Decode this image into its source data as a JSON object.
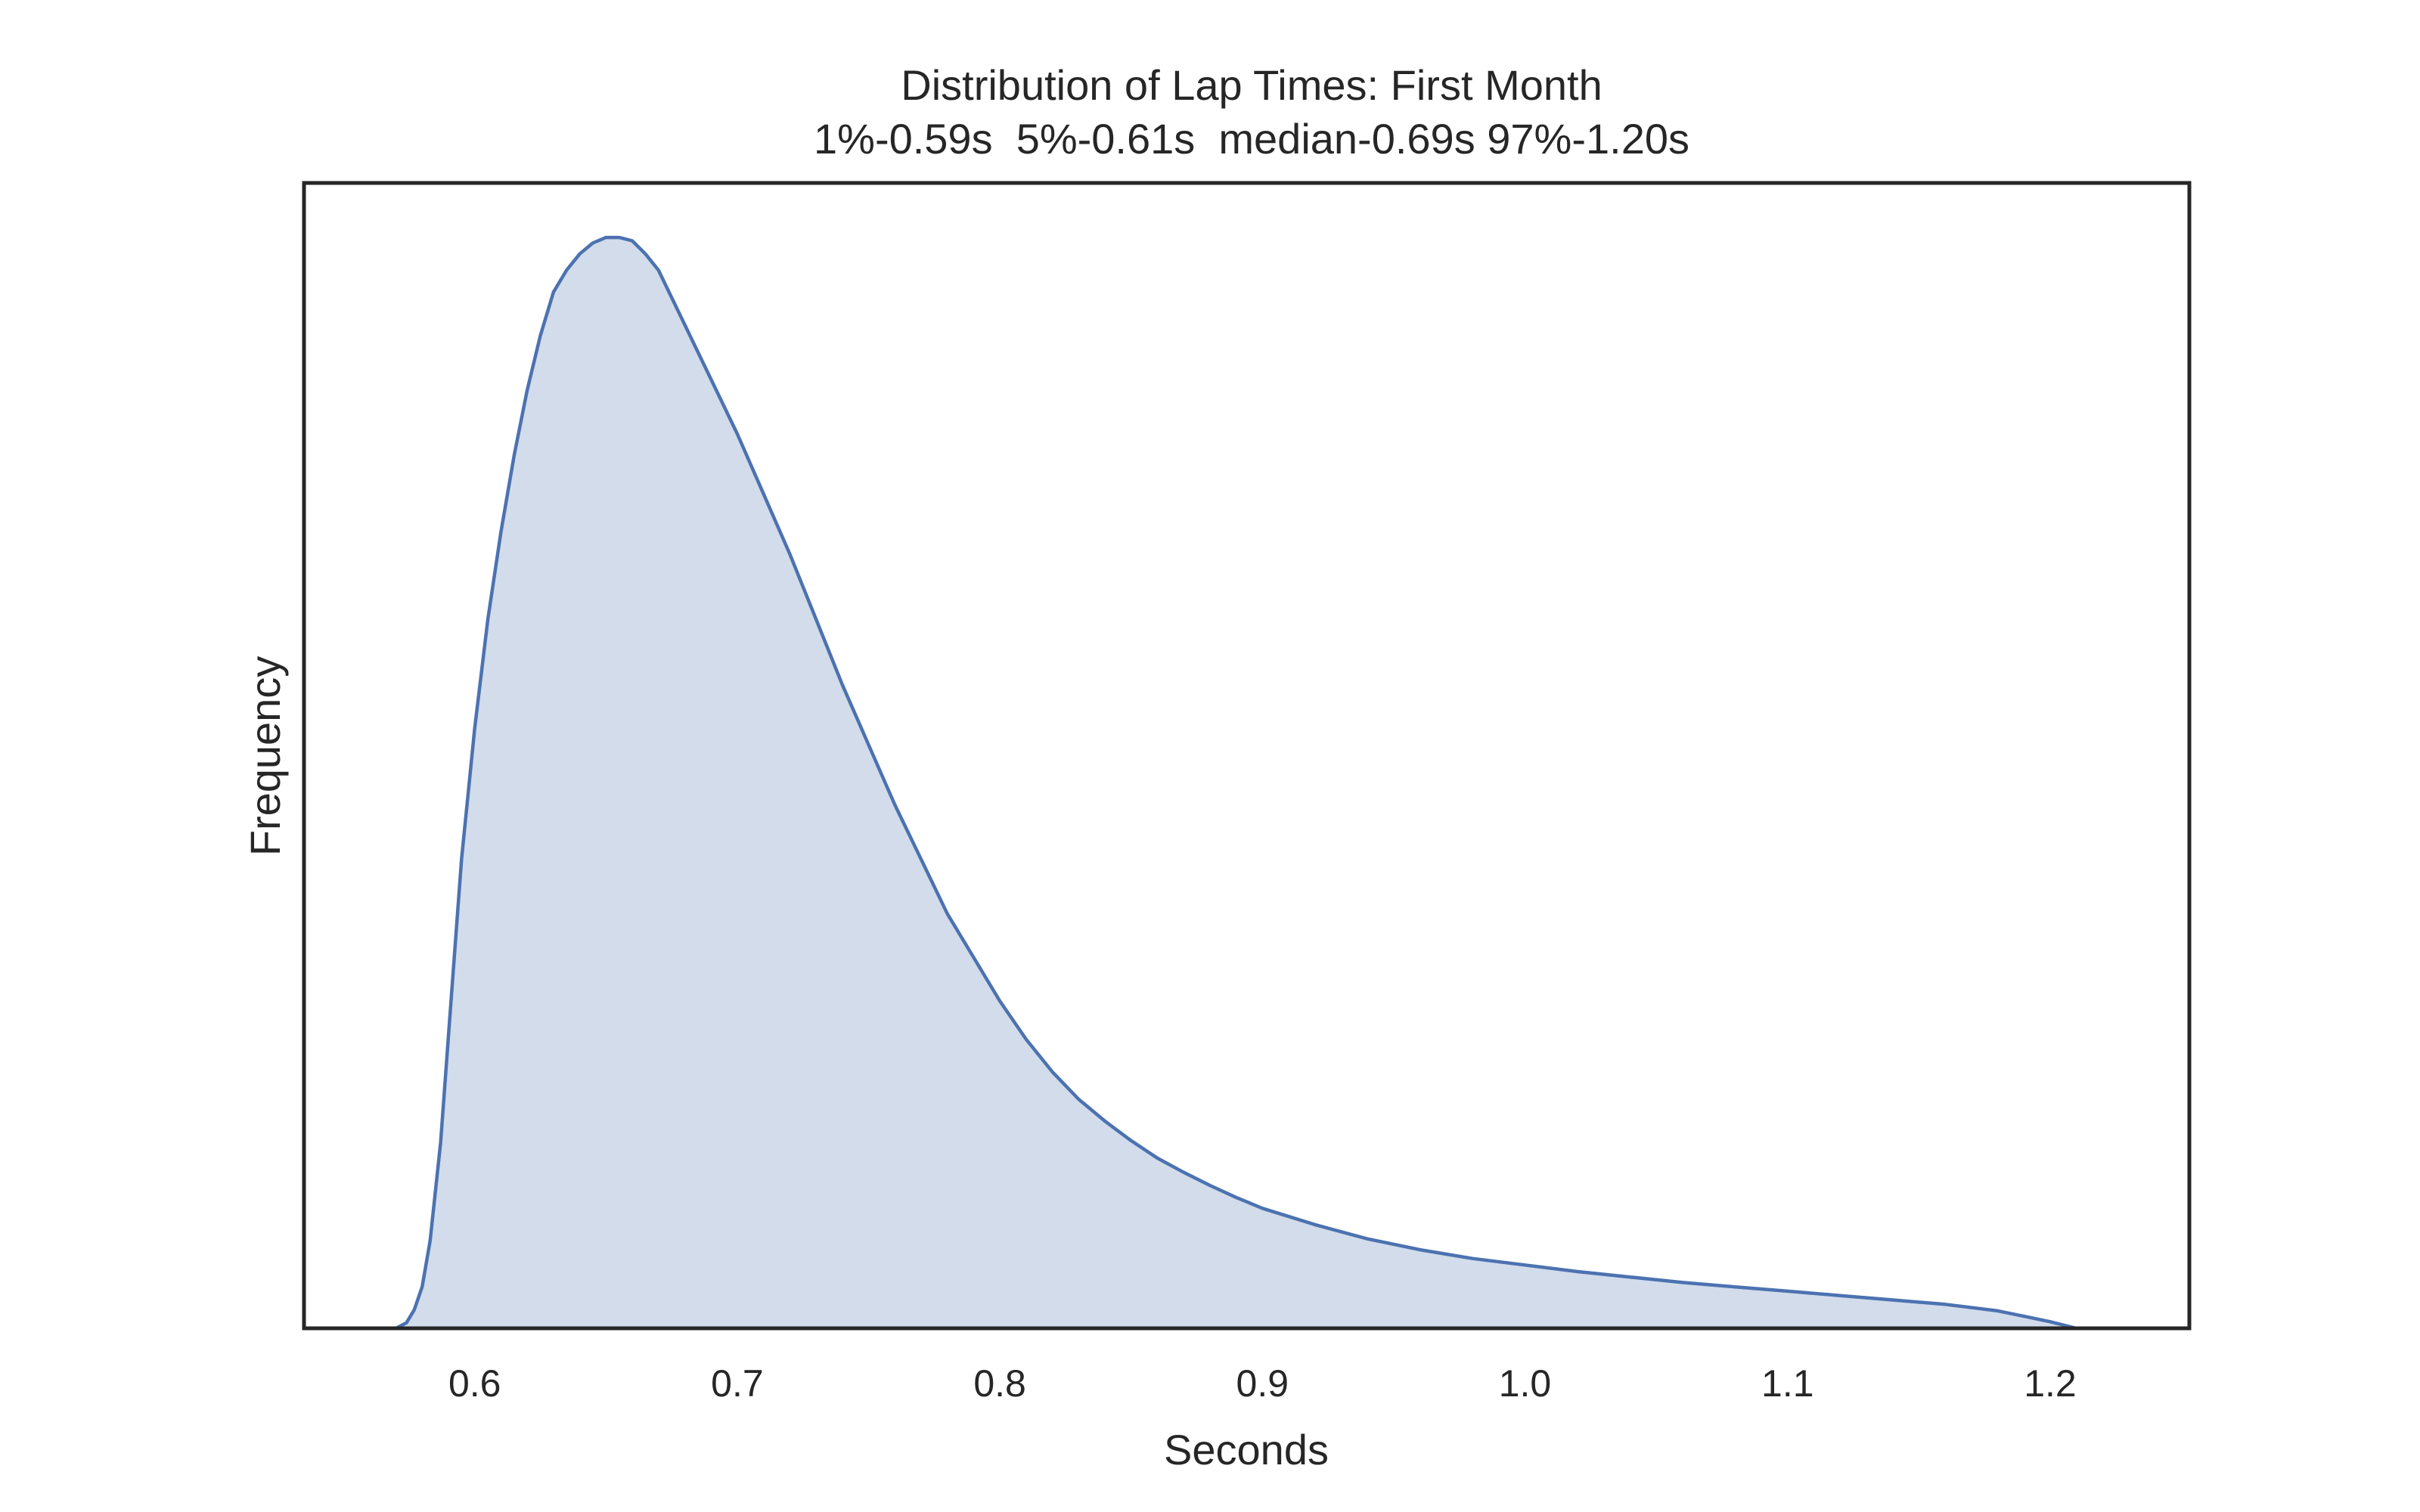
{
  "chart_data": {
    "type": "area",
    "title": "Distribution of Lap Times: First Month",
    "subtitle": "1%-0.59s  5%-0.61s  median-0.69s 97%-1.20s",
    "xlabel": "Seconds",
    "ylabel": "Frequency",
    "xlim": [
      0.535,
      1.253
    ],
    "ylim": [
      0,
      1.05
    ],
    "x_ticks": [
      "0.6",
      "0.7",
      "0.8",
      "0.9",
      "1.0",
      "1.1",
      "1.2"
    ],
    "y_ticks": [],
    "grid": false,
    "legend": "none",
    "colors": {
      "line": "#4C72B0",
      "fill": "#4C72B0",
      "fill_opacity": 0.25,
      "frame": "#262626"
    },
    "x": [
      0.57,
      0.574,
      0.577,
      0.58,
      0.583,
      0.587,
      0.591,
      0.595,
      0.6,
      0.605,
      0.61,
      0.615,
      0.62,
      0.625,
      0.63,
      0.635,
      0.64,
      0.645,
      0.65,
      0.655,
      0.66,
      0.665,
      0.67,
      0.675,
      0.68,
      0.69,
      0.7,
      0.71,
      0.72,
      0.73,
      0.74,
      0.75,
      0.76,
      0.77,
      0.78,
      0.79,
      0.8,
      0.81,
      0.82,
      0.83,
      0.84,
      0.85,
      0.86,
      0.87,
      0.88,
      0.89,
      0.9,
      0.92,
      0.94,
      0.96,
      0.98,
      1.0,
      1.02,
      1.04,
      1.06,
      1.08,
      1.1,
      1.12,
      1.14,
      1.16,
      1.18,
      1.19,
      1.2,
      1.21
    ],
    "y": [
      0.0,
      0.005,
      0.017,
      0.038,
      0.08,
      0.17,
      0.3,
      0.43,
      0.55,
      0.65,
      0.73,
      0.8,
      0.86,
      0.91,
      0.95,
      0.97,
      0.985,
      0.995,
      1.0,
      1.0,
      0.997,
      0.985,
      0.97,
      0.945,
      0.92,
      0.87,
      0.82,
      0.765,
      0.71,
      0.65,
      0.59,
      0.535,
      0.48,
      0.43,
      0.38,
      0.34,
      0.3,
      0.265,
      0.235,
      0.21,
      0.19,
      0.172,
      0.156,
      0.143,
      0.131,
      0.12,
      0.11,
      0.095,
      0.082,
      0.072,
      0.064,
      0.058,
      0.052,
      0.047,
      0.042,
      0.038,
      0.034,
      0.03,
      0.026,
      0.022,
      0.016,
      0.011,
      0.006,
      0.0
    ]
  }
}
